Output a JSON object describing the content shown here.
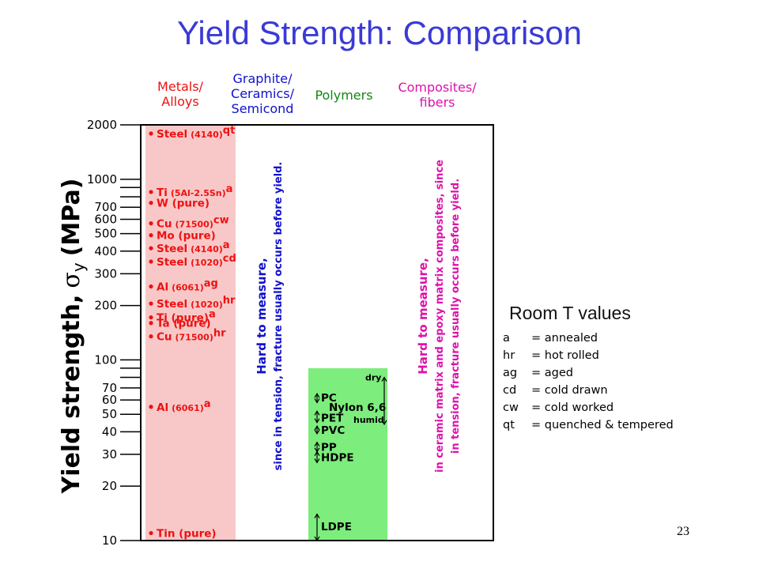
{
  "title": "Yield Strength: Comparison",
  "categories": [
    {
      "name": "metals",
      "label_lines": [
        "Metals/",
        "Alloys"
      ],
      "color": "#ee1111"
    },
    {
      "name": "ceramics",
      "label_lines": [
        "Graphite/",
        "Ceramics/",
        "Semicond"
      ],
      "color": "#1111cc"
    },
    {
      "name": "polymers",
      "label_lines": [
        "Polymers"
      ],
      "color": "#118811"
    },
    {
      "name": "composites",
      "label_lines": [
        "Composites/",
        "fibers"
      ],
      "color": "#dd11aa"
    }
  ],
  "legend": {
    "title": "Room T values",
    "entries": [
      {
        "abbr": "a",
        "meaning": "= annealed"
      },
      {
        "abbr": "hr",
        "meaning": "= hot rolled"
      },
      {
        "abbr": "ag",
        "meaning": "= aged"
      },
      {
        "abbr": "cd",
        "meaning": "= cold drawn"
      },
      {
        "abbr": "cw",
        "meaning": "= cold worked"
      },
      {
        "abbr": "qt",
        "meaning": "= quenched & tempered"
      }
    ]
  },
  "page_number": "23",
  "chart_data": {
    "type": "scatter",
    "ylabel_parts": [
      "Yield strength,",
      "σ",
      "y",
      "(MPa)"
    ],
    "yscale": "log",
    "ylim": [
      10,
      2000
    ],
    "y_tick_labels": [
      10,
      20,
      30,
      40,
      50,
      60,
      70,
      100,
      200,
      300,
      400,
      500,
      600,
      700,
      1000,
      2000
    ],
    "metals": [
      {
        "name": "Steel",
        "spec": "(4140)",
        "cond": "qt",
        "y": 1790
      },
      {
        "name": "Ti",
        "spec": "(5Al-2.5Sn)",
        "cond": "a",
        "y": 850
      },
      {
        "name": "W (pure)",
        "spec": "",
        "cond": "",
        "y": 740
      },
      {
        "name": "Cu",
        "spec": "(71500)",
        "cond": "cw",
        "y": 570
      },
      {
        "name": "Mo (pure)",
        "spec": "",
        "cond": "",
        "y": 490
      },
      {
        "name": "Steel",
        "spec": "(4140)",
        "cond": "a",
        "y": 415
      },
      {
        "name": "Steel",
        "spec": "(1020)",
        "cond": "cd",
        "y": 350
      },
      {
        "name": "Al",
        "spec": "(6061)",
        "cond": "ag",
        "y": 255
      },
      {
        "name": "Steel",
        "spec": "(1020)",
        "cond": "hr",
        "y": 205
      },
      {
        "name": "Ti (pure)",
        "spec": "",
        "cond": "a",
        "y": 172
      },
      {
        "name": "Ta (pure)",
        "spec": "",
        "cond": "",
        "y": 160
      },
      {
        "name": "Cu",
        "spec": "(71500)",
        "cond": "hr",
        "y": 135
      },
      {
        "name": "Al",
        "spec": "(6061)",
        "cond": "a",
        "y": 55
      },
      {
        "name": "Tin (pure)",
        "spec": "",
        "cond": "",
        "y": 11
      }
    ],
    "polymers": [
      {
        "name": "PC",
        "y": 62
      },
      {
        "name": "Nylon 6,6",
        "y": 55
      },
      {
        "name": "PET",
        "y": 48
      },
      {
        "name": "PVC",
        "y": 41
      },
      {
        "name": "PP",
        "y": 33
      },
      {
        "name": "HDPE",
        "y": 29
      },
      {
        "name": "LDPE",
        "y": 12
      }
    ],
    "polymer_ranges": [
      {
        "label": "Nylon 6,6",
        "label_top": "dry",
        "label_bottom": "humid",
        "y_min": 44,
        "y_max": 80
      },
      {
        "name": "PC",
        "y_min": 58,
        "y_max": 65
      },
      {
        "name": "PET",
        "y_min": 45,
        "y_max": 52
      },
      {
        "name": "PVC",
        "y_min": 39,
        "y_max": 43
      },
      {
        "name": "PP",
        "y_min": 31,
        "y_max": 35
      },
      {
        "name": "HDPE",
        "y_min": 27,
        "y_max": 31
      },
      {
        "name": "LDPE",
        "y_min": 10,
        "y_max": 14
      }
    ],
    "metals_band_max": 2000,
    "polymers_band_max": 90,
    "ceramics_note": [
      "Hard to measure,",
      "since in tension, fracture usually occurs before yield."
    ],
    "composites_note": [
      "Hard to measure,",
      "in ceramic matrix and epoxy matrix composites, since",
      "in tension, fracture usually occurs before yield."
    ]
  }
}
